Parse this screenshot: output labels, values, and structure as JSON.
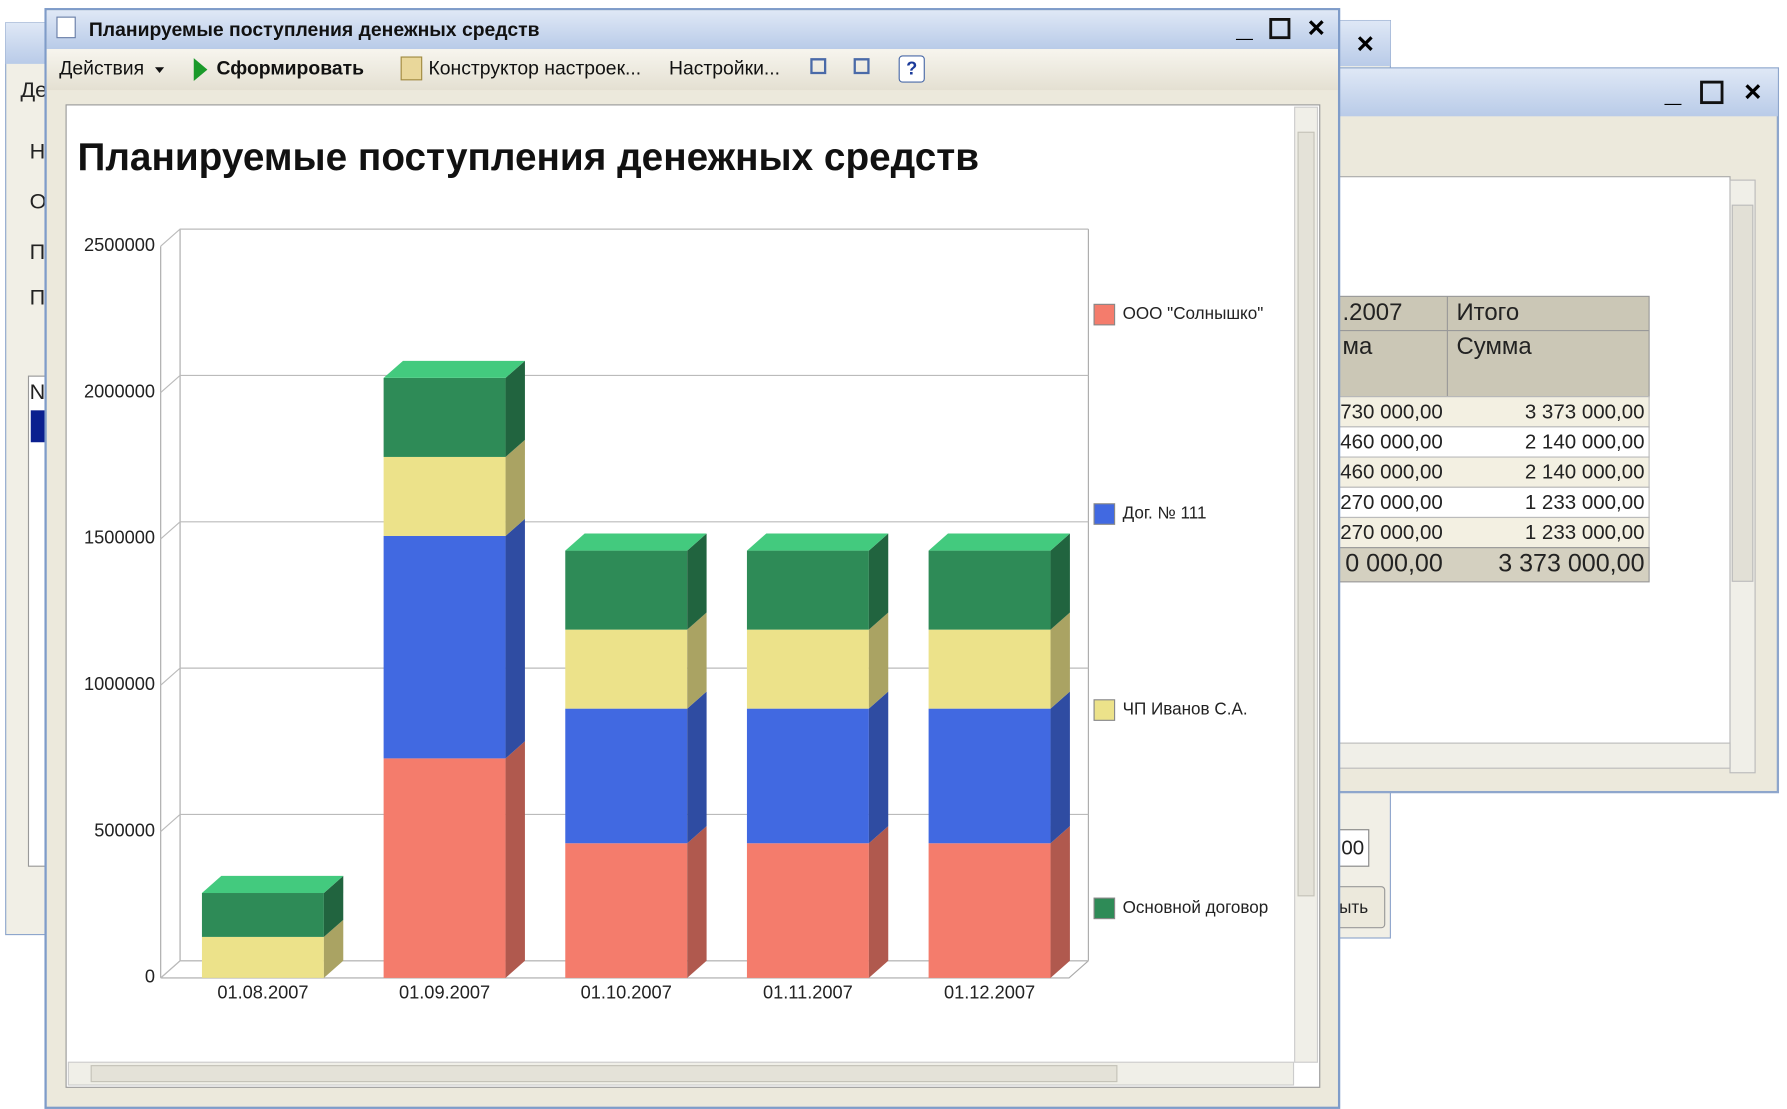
{
  "window": {
    "title": "Планируемые поступления денежных средств",
    "toolbar": {
      "actions": "Действия",
      "generate": "Сформировать",
      "constructor": "Конструктор настроек...",
      "settings": "Настройки...",
      "help": "?"
    }
  },
  "chart_data": {
    "type": "bar",
    "stacked": true,
    "title": "Планируемые поступления денежных средств",
    "categories": [
      "01.08.2007",
      "01.09.2007",
      "01.10.2007",
      "01.11.2007",
      "01.12.2007"
    ],
    "series": [
      {
        "name": "ООО \"Солнышко\"",
        "color": "#f47c6c",
        "values": [
          0,
          750000,
          460000,
          460000,
          460000
        ]
      },
      {
        "name": "Дог. № 111",
        "color": "#4169e1",
        "values": [
          0,
          760000,
          460000,
          460000,
          460000
        ]
      },
      {
        "name": "ЧП Иванов С.А.",
        "color": "#ece28a",
        "values": [
          140000,
          270000,
          270000,
          270000,
          270000
        ]
      },
      {
        "name": "Основной договор",
        "color": "#2e8b57",
        "values": [
          150000,
          270000,
          270000,
          270000,
          270000
        ]
      }
    ],
    "ylim": [
      0,
      2500000
    ],
    "yticks": [
      0,
      500000,
      1000000,
      1500000,
      2000000,
      2500000
    ],
    "grid": true,
    "legend": "right"
  },
  "background_window": {
    "table": {
      "headers": [
        [
          ".2007",
          "Итого"
        ],
        [
          "ма",
          "Сумма"
        ]
      ],
      "rows": [
        [
          "730 000,00",
          "3 373 000,00"
        ],
        [
          "460 000,00",
          "2 140 000,00"
        ],
        [
          "460 000,00",
          "2 140 000,00"
        ],
        [
          "270 000,00",
          "1 233 000,00"
        ],
        [
          "270 000,00",
          "1 233 000,00"
        ]
      ],
      "total": [
        "0 000,00",
        "3 373 000,00"
      ]
    }
  },
  "left_window": {
    "labels": [
      "Де",
      "Н",
      "О",
      "П",
      "П",
      "N"
    ]
  },
  "middle_window": {
    "field": "00",
    "button": "ыть"
  }
}
